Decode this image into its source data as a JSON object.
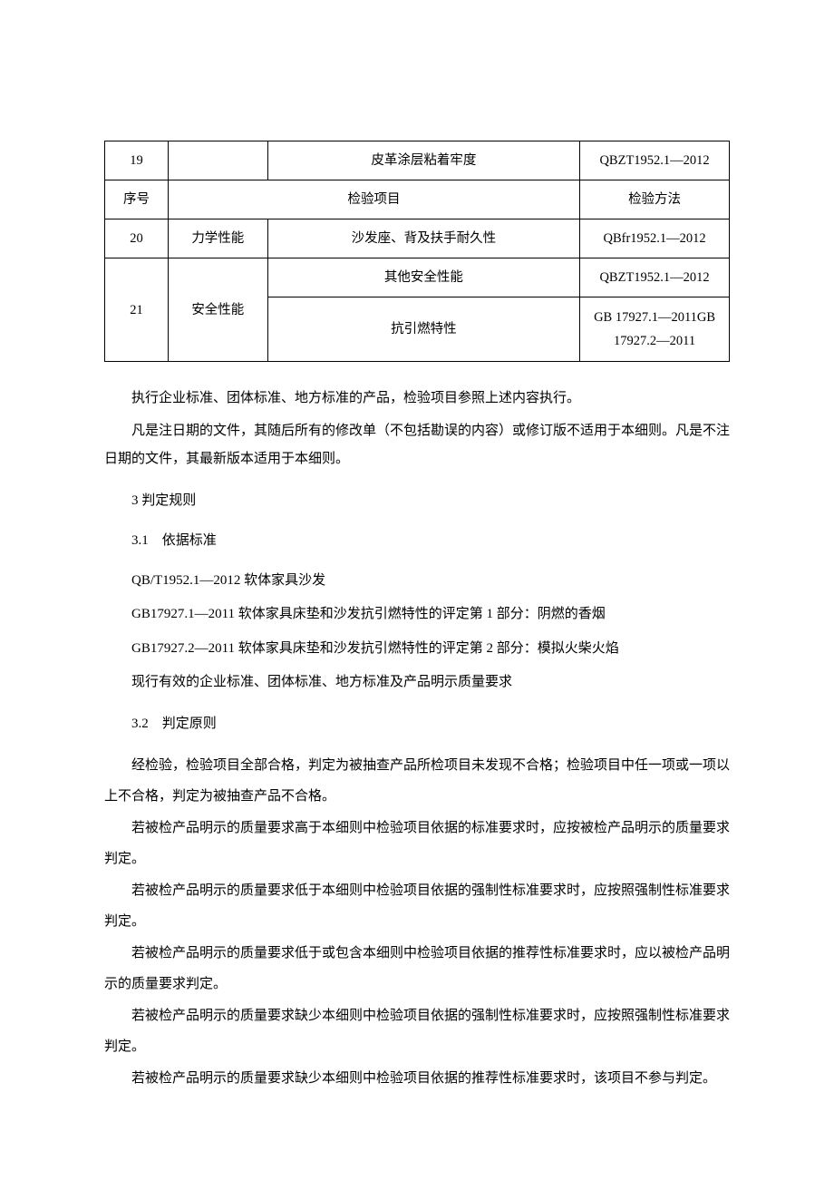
{
  "table": {
    "rows": [
      {
        "seq": "19",
        "cat": "",
        "item": "皮革涂层粘着牢度",
        "method": "QBZT1952.1—2012"
      },
      {
        "seq": "序号",
        "cat_item": "检验项目",
        "method": "检验方法"
      },
      {
        "seq": "20",
        "cat": "力学性能",
        "item": "沙发座、背及扶手耐久性",
        "method": "QBfr1952.1—2012"
      },
      {
        "seq": "21",
        "cat": "安全性能",
        "item1": "其他安全性能",
        "method1": "QBZT1952.1—2012",
        "item2": "抗引燃特性",
        "method2": "GB 17927.1—2011GB 17927.2—2011"
      }
    ]
  },
  "para1": "执行企业标准、团体标准、地方标准的产品，检验项目参照上述内容执行。",
  "para2": "凡是注日期的文件，其随后所有的修改单（不包括勘误的内容）或修订版不适用于本细则。凡是不注日期的文件，其最新版本适用于本细则。",
  "sec3": "3 判定规则",
  "sec31": "3.1　依据标准",
  "std1": "QB/T1952.1—2012 软体家具沙发",
  "std2": "GB17927.1—2011 软体家具床垫和沙发抗引燃特性的评定第 1 部分：阴燃的香烟",
  "std3": "GB17927.2—2011 软体家具床垫和沙发抗引燃特性的评定第 2 部分：模拟火柴火焰",
  "std4": "现行有效的企业标准、团体标准、地方标准及产品明示质量要求",
  "sec32": "3.2　判定原则",
  "j1": "经检验，检验项目全部合格，判定为被抽查产品所检项目未发现不合格；检验项目中任一项或一项以上不合格，判定为被抽查产品不合格。",
  "j2": "若被检产品明示的质量要求高于本细则中检验项目依据的标准要求时，应按被检产品明示的质量要求判定。",
  "j3": "若被检产品明示的质量要求低于本细则中检验项目依据的强制性标准要求时，应按照强制性标准要求判定。",
  "j4": "若被检产品明示的质量要求低于或包含本细则中检验项目依据的推荐性标准要求时，应以被检产品明示的质量要求判定。",
  "j5": "若被检产品明示的质量要求缺少本细则中检验项目依据的强制性标准要求时，应按照强制性标准要求判定。",
  "j6": "若被检产品明示的质量要求缺少本细则中检验项目依据的推荐性标准要求时，该项目不参与判定。"
}
